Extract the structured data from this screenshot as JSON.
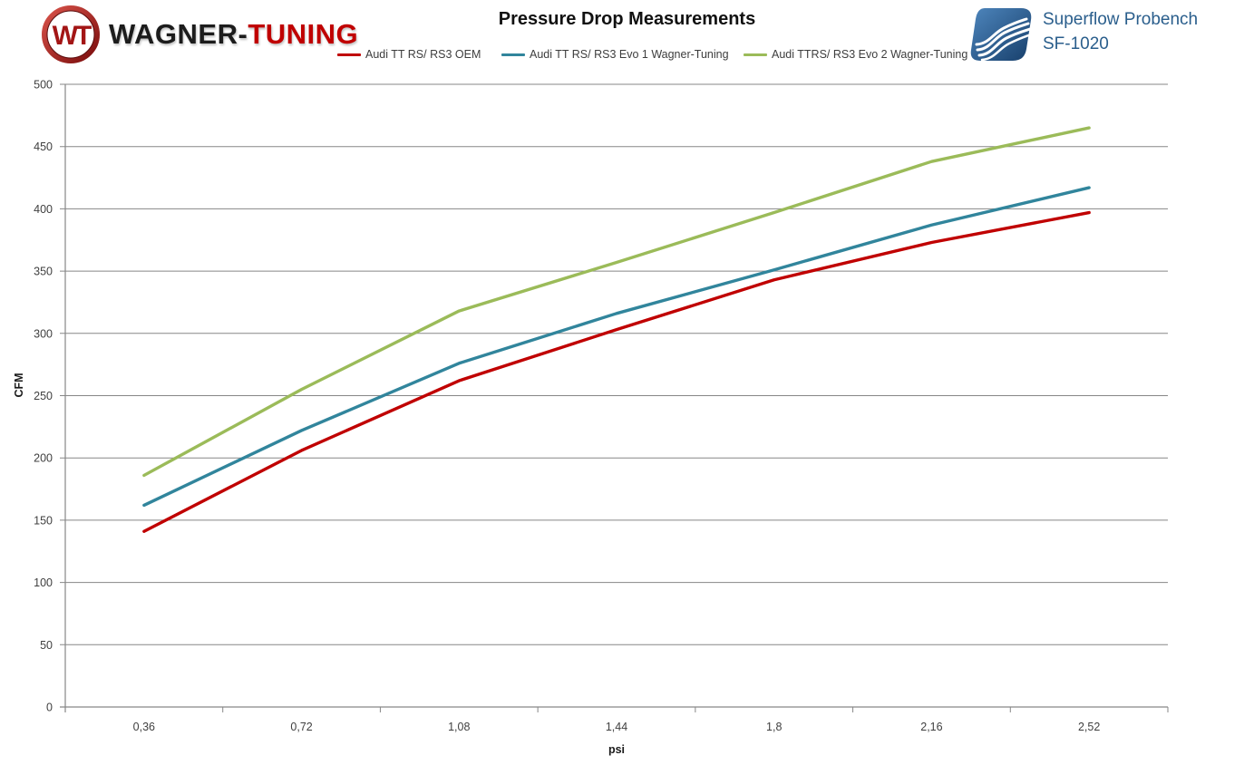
{
  "header": {
    "wagner_logo": {
      "monogram": "WT",
      "word_black": "WAGNER-",
      "word_red": "TUNING"
    },
    "superflow_logo": {
      "line1": "Superflow Probench",
      "line2": "SF-1020"
    }
  },
  "chart_data": {
    "type": "line",
    "title": "Pressure Drop Measurements",
    "xlabel": "psi",
    "ylabel": "CFM",
    "categories": [
      "0,36",
      "0,72",
      "1,08",
      "1,44",
      "1,8",
      "2,16",
      "2,52"
    ],
    "ylim": [
      0,
      500
    ],
    "ytick_step": 50,
    "grid": "horizontal",
    "legend_position": "top",
    "series": [
      {
        "name": "Audi TT RS/ RS3  OEM",
        "color": "#C00000",
        "values": [
          141,
          206,
          262,
          303,
          343,
          373,
          397
        ]
      },
      {
        "name": "Audi TT RS/ RS3 Evo 1 Wagner-Tuning",
        "color": "#31859C",
        "values": [
          162,
          222,
          276,
          316,
          351,
          387,
          417
        ]
      },
      {
        "name": "Audi TTRS/ RS3 Evo 2 Wagner-Tuning",
        "color": "#9BBB59",
        "values": [
          186,
          255,
          318,
          357,
          397,
          438,
          465
        ]
      }
    ],
    "colors": {
      "axis": "#878787",
      "tick_text": "#3F3F3F"
    }
  }
}
